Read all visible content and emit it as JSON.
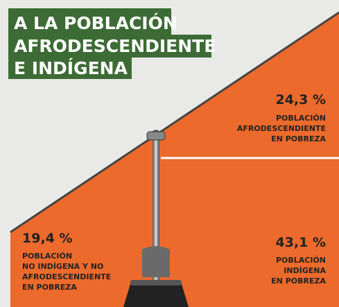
{
  "title": {
    "lines": [
      "A LA POBLACIÓN",
      "AFRODESCENDIENTE",
      "E INDÍGENA"
    ]
  },
  "panels": [
    {
      "value": "24,3 %",
      "label": [
        "POBLACIÓN",
        "AFRODESCENDIENTE",
        "EN POBREZA"
      ]
    },
    {
      "value": "19,4 %",
      "label": [
        "POBLACIÓN",
        "NO INDÍGENA Y NO",
        "AFRODESCENDIENTE",
        "EN POBREZA"
      ]
    },
    {
      "value": "43,1 %",
      "label": [
        "POBLACIÓN",
        "INDÍGENA",
        "EN POBREZA"
      ]
    }
  ]
}
